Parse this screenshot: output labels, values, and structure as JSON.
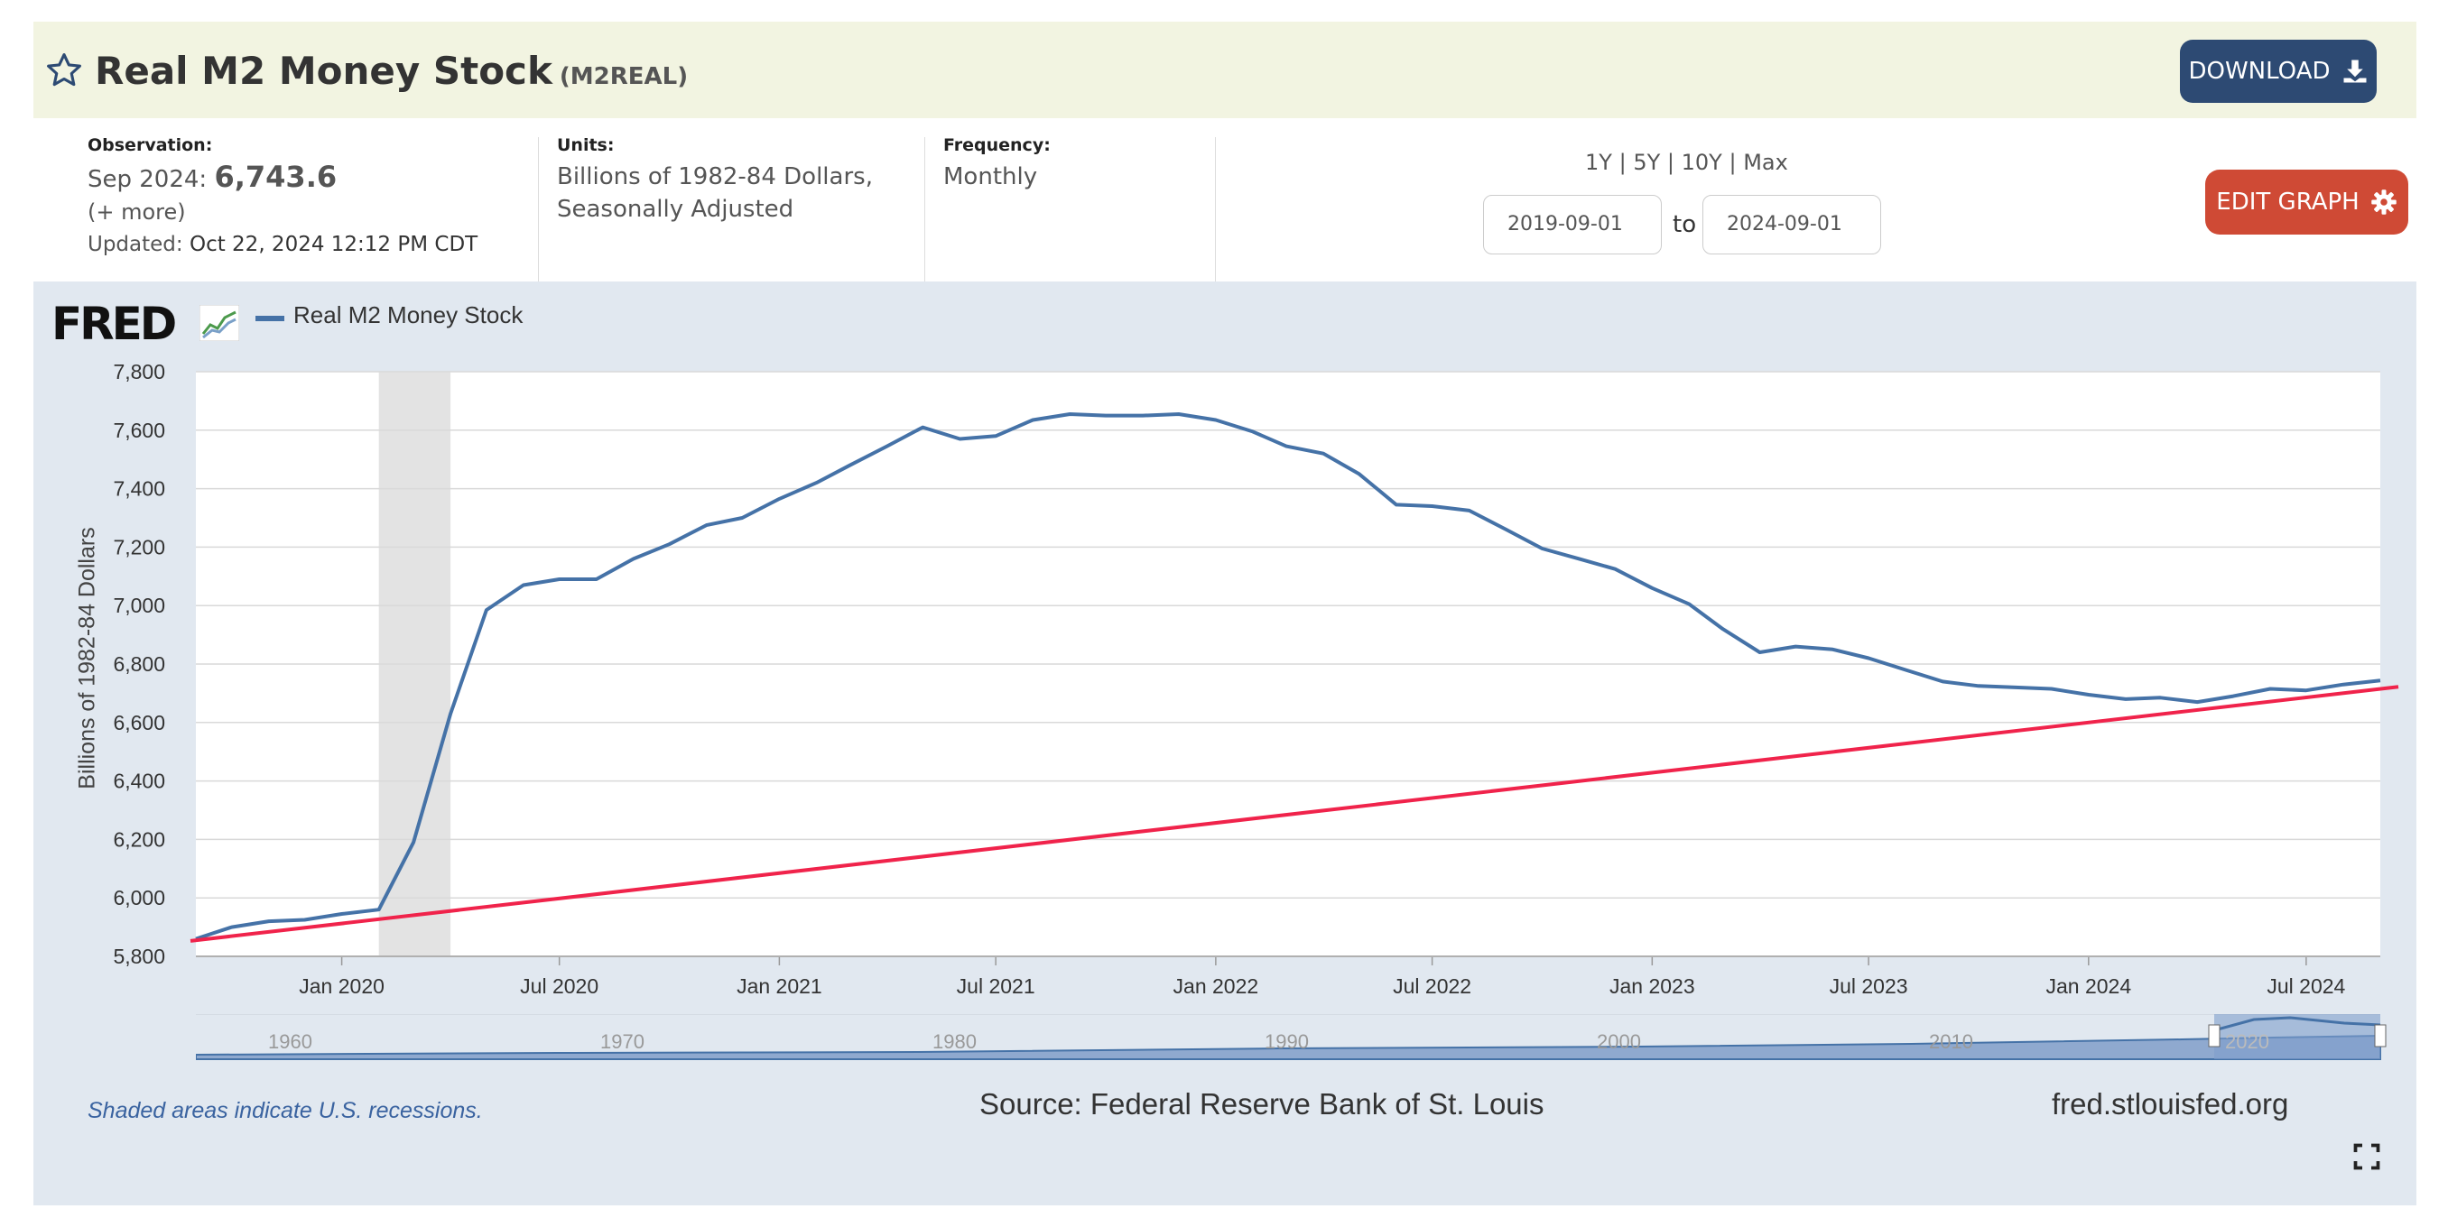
{
  "header": {
    "title": "Real M2 Money Stock",
    "series_code": "(M2REAL)",
    "download_label": "DOWNLOAD"
  },
  "observation": {
    "label": "Observation:",
    "date": "Sep 2024:",
    "value": "6,743.6",
    "more": "(+ more)",
    "updated_label": "Updated:",
    "updated_value": "Oct 22, 2024 12:12 PM CDT"
  },
  "units": {
    "label": "Units:",
    "line1": "Billions of 1982-84 Dollars,",
    "line2": "Seasonally Adjusted"
  },
  "frequency": {
    "label": "Frequency:",
    "value": "Monthly"
  },
  "range": {
    "links": [
      "1Y",
      "5Y",
      "10Y",
      "Max"
    ],
    "separator": "|",
    "start": "2019-09-01",
    "to": "to",
    "end": "2024-09-01"
  },
  "edit_label": "EDIT GRAPH",
  "chart_panel": {
    "logo": "FRED",
    "shade_note": "Shaded areas indicate U.S. recessions.",
    "source": "Source: Federal Reserve Bank of St. Louis",
    "site": "fred.stlouisfed.org"
  },
  "colors": {
    "series": "#4572a7",
    "trend": "#f0234b",
    "recession": "#e3e3e3",
    "download_btn": "#2d4a73",
    "edit_btn": "#cf4a35"
  },
  "chart_data": {
    "type": "line",
    "ylabel": "Billions of 1982-84 Dollars",
    "ylim": [
      5800,
      7800
    ],
    "yticks": [
      "5,800",
      "6,000",
      "6,200",
      "6,400",
      "6,600",
      "6,800",
      "7,000",
      "7,200",
      "7,400",
      "7,600",
      "7,800"
    ],
    "xlim": [
      "2019-09-01",
      "2024-09-01"
    ],
    "xticks": [
      {
        "date": "2020-01-01",
        "label": "Jan 2020"
      },
      {
        "date": "2020-07-01",
        "label": "Jul 2020"
      },
      {
        "date": "2021-01-01",
        "label": "Jan 2021"
      },
      {
        "date": "2021-07-01",
        "label": "Jul 2021"
      },
      {
        "date": "2022-01-01",
        "label": "Jan 2022"
      },
      {
        "date": "2022-07-01",
        "label": "Jul 2022"
      },
      {
        "date": "2023-01-01",
        "label": "Jan 2023"
      },
      {
        "date": "2023-07-01",
        "label": "Jul 2023"
      },
      {
        "date": "2024-01-01",
        "label": "Jan 2024"
      },
      {
        "date": "2024-07-01",
        "label": "Jul 2024"
      }
    ],
    "grid": true,
    "legend": "top-left",
    "recessions": [
      {
        "start": "2020-02-01",
        "end": "2020-04-01"
      }
    ],
    "series": [
      {
        "name": "Real M2 Money Stock",
        "x": [
          "2019-09-01",
          "2019-10-01",
          "2019-11-01",
          "2019-12-01",
          "2020-01-01",
          "2020-02-01",
          "2020-03-01",
          "2020-04-01",
          "2020-05-01",
          "2020-06-01",
          "2020-07-01",
          "2020-08-01",
          "2020-09-01",
          "2020-10-01",
          "2020-11-01",
          "2020-12-01",
          "2021-01-01",
          "2021-02-01",
          "2021-03-01",
          "2021-04-01",
          "2021-05-01",
          "2021-06-01",
          "2021-07-01",
          "2021-08-01",
          "2021-09-01",
          "2021-10-01",
          "2021-11-01",
          "2021-12-01",
          "2022-01-01",
          "2022-02-01",
          "2022-03-01",
          "2022-04-01",
          "2022-05-01",
          "2022-06-01",
          "2022-07-01",
          "2022-08-01",
          "2022-09-01",
          "2022-10-01",
          "2022-11-01",
          "2022-12-01",
          "2023-01-01",
          "2023-02-01",
          "2023-03-01",
          "2023-04-01",
          "2023-05-01",
          "2023-06-01",
          "2023-07-01",
          "2023-08-01",
          "2023-09-01",
          "2023-10-01",
          "2023-11-01",
          "2023-12-01",
          "2024-01-01",
          "2024-02-01",
          "2024-03-01",
          "2024-04-01",
          "2024-05-01",
          "2024-06-01",
          "2024-07-01",
          "2024-08-01",
          "2024-09-01"
        ],
        "y": [
          5860,
          5900,
          5920,
          5925,
          5945,
          5960,
          6190,
          6630,
          6985,
          7070,
          7090,
          7090,
          7160,
          7210,
          7275,
          7300,
          7365,
          7420,
          7480,
          7545,
          7610,
          7570,
          7580,
          7635,
          7655,
          7650,
          7650,
          7655,
          7635,
          7595,
          7545,
          7520,
          7450,
          7345,
          7340,
          7325,
          7260,
          7195,
          7160,
          7125,
          7060,
          7005,
          6920,
          6840,
          6860,
          6850,
          6820,
          6780,
          6740,
          6725,
          6720,
          6715,
          6695,
          6680,
          6685,
          6670,
          6690,
          6715,
          6710,
          6730,
          6743.6
        ]
      },
      {
        "name": "",
        "x": [
          "2019-09-01",
          "2024-09-01"
        ],
        "y": [
          5855,
          6715
        ]
      }
    ]
  }
}
